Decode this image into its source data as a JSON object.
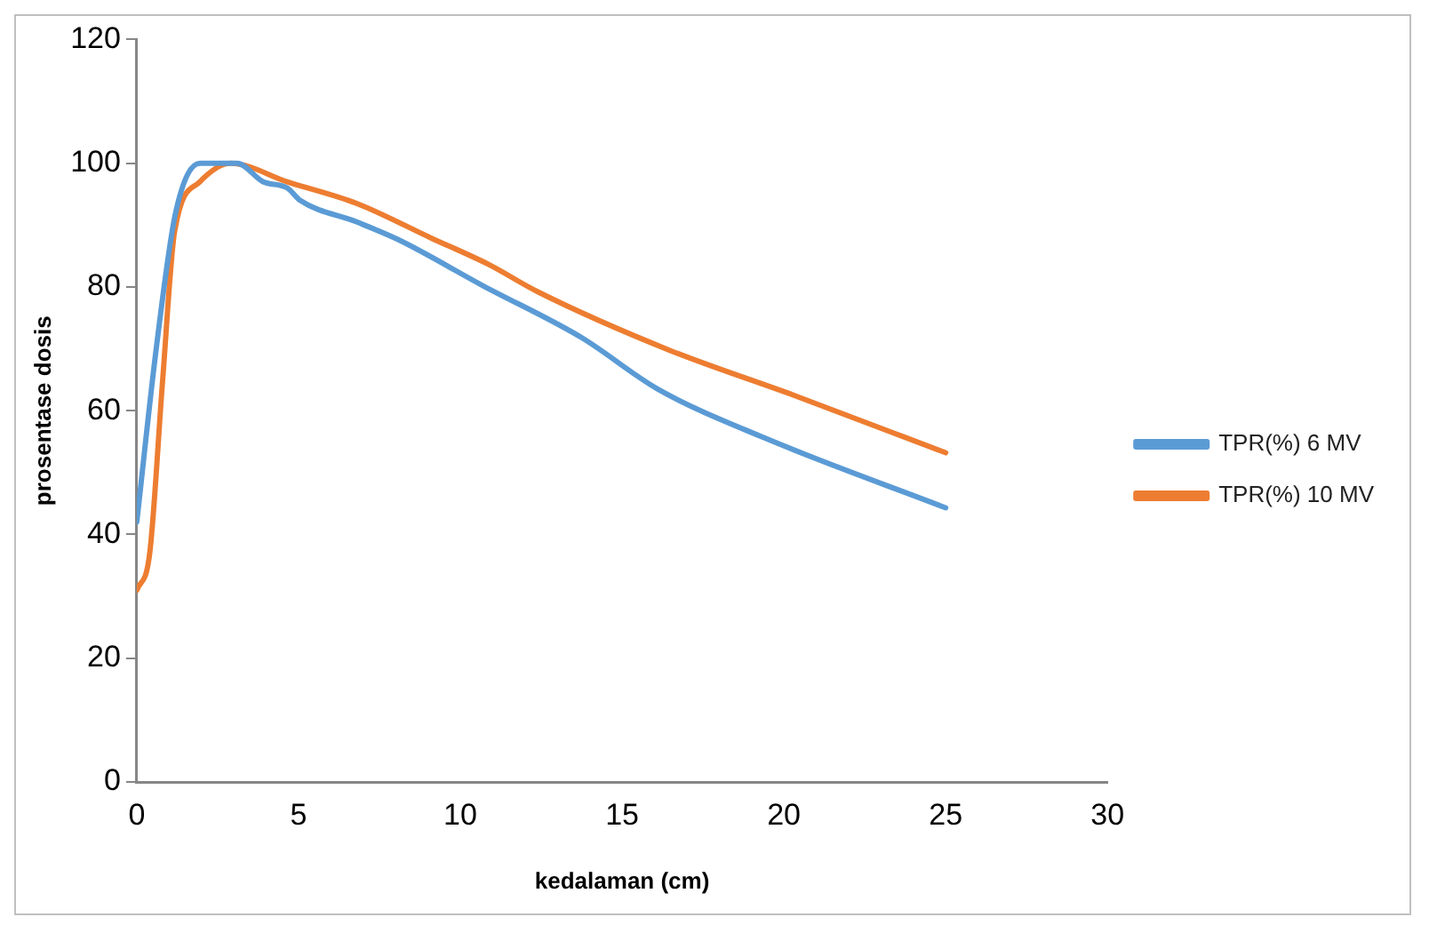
{
  "chart_data": {
    "type": "line",
    "xlabel": "kedalaman (cm)",
    "ylabel": "prosentase dosis",
    "xlim": [
      0,
      30
    ],
    "xticks": [
      0,
      5,
      10,
      15,
      20,
      25,
      30
    ],
    "ylim": [
      0,
      120
    ],
    "yticks": [
      0,
      20,
      40,
      60,
      80,
      100,
      120
    ],
    "grid": false,
    "legend": "right",
    "marker": "none",
    "line_style": "solid",
    "series": [
      {
        "name": "TPR(%) 6 MV",
        "color": "#5b9bd5",
        "x": [
          0,
          0.6,
          1.2,
          1.95,
          3.1,
          3.9,
          4.65,
          5.05,
          6.8,
          8.1,
          10.7,
          13.75,
          16.1,
          19.4,
          25
        ],
        "values": [
          42,
          70,
          92,
          100,
          100,
          97,
          96,
          94,
          90.5,
          87.6,
          80.2,
          71.8,
          63.5,
          55.6,
          44.3
        ]
      },
      {
        "name": "TPR(%) 10 MV",
        "color": "#ed7d31",
        "x": [
          0,
          0.4,
          0.8,
          1.17,
          1.95,
          2.9,
          4.65,
          6.8,
          9.1,
          10.85,
          12.4,
          16.45,
          20.3,
          25
        ],
        "values": [
          31,
          37,
          65,
          89,
          97,
          100,
          97,
          93.5,
          87.9,
          83.7,
          79.2,
          69.8,
          62.5,
          53.2
        ]
      }
    ]
  }
}
